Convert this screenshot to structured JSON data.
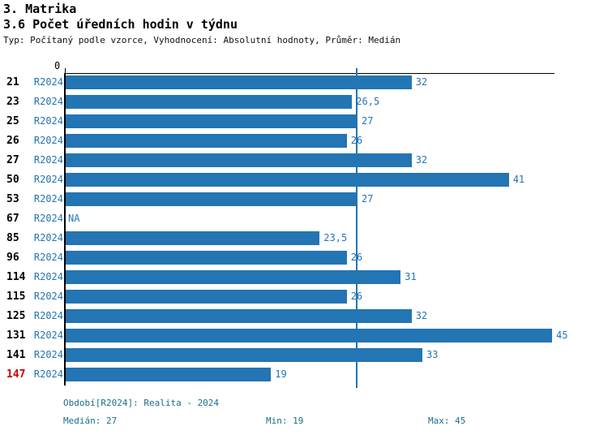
{
  "header": {
    "title": "3. Matrika",
    "subtitle": "3.6 Počet úředních hodin v týdnu",
    "meta": "Typ: Počítaný podle vzorce, Vyhodnocení: Absolutní hodnoty, Průměr: Medián"
  },
  "colors": {
    "bar_blue": "#2375b3",
    "label_blue": "#2375b3",
    "footer_teal": "#1b6e87",
    "highlight_red": "#cc0000",
    "axis_black": "#000000"
  },
  "chart_data": {
    "type": "bar",
    "orientation": "horizontal",
    "title": "3.6 Počet úředních hodin v týdnu",
    "categories": [
      "21",
      "23",
      "25",
      "26",
      "27",
      "50",
      "53",
      "67",
      "85",
      "96",
      "114",
      "115",
      "125",
      "131",
      "141",
      "147"
    ],
    "series_label": "R2024",
    "values": [
      32,
      26.5,
      27,
      26,
      32,
      41,
      27,
      null,
      23.5,
      26,
      31,
      26,
      32,
      45,
      33,
      19
    ],
    "value_labels": [
      "32",
      "26,5",
      "27",
      "26",
      "32",
      "41",
      "27",
      "NA",
      "23,5",
      "26",
      "31",
      "26",
      "32",
      "45",
      "33",
      "19"
    ],
    "xlim": [
      0,
      45.5
    ],
    "x_tick_labels": [
      "0"
    ],
    "median_line": 27,
    "highlight_category": "147",
    "grid": false,
    "legend": "none"
  },
  "footer": {
    "period": "Období[R2024]: Realita - 2024",
    "median": "Medián: 27",
    "min": "Min: 19",
    "max": "Max: 45"
  }
}
